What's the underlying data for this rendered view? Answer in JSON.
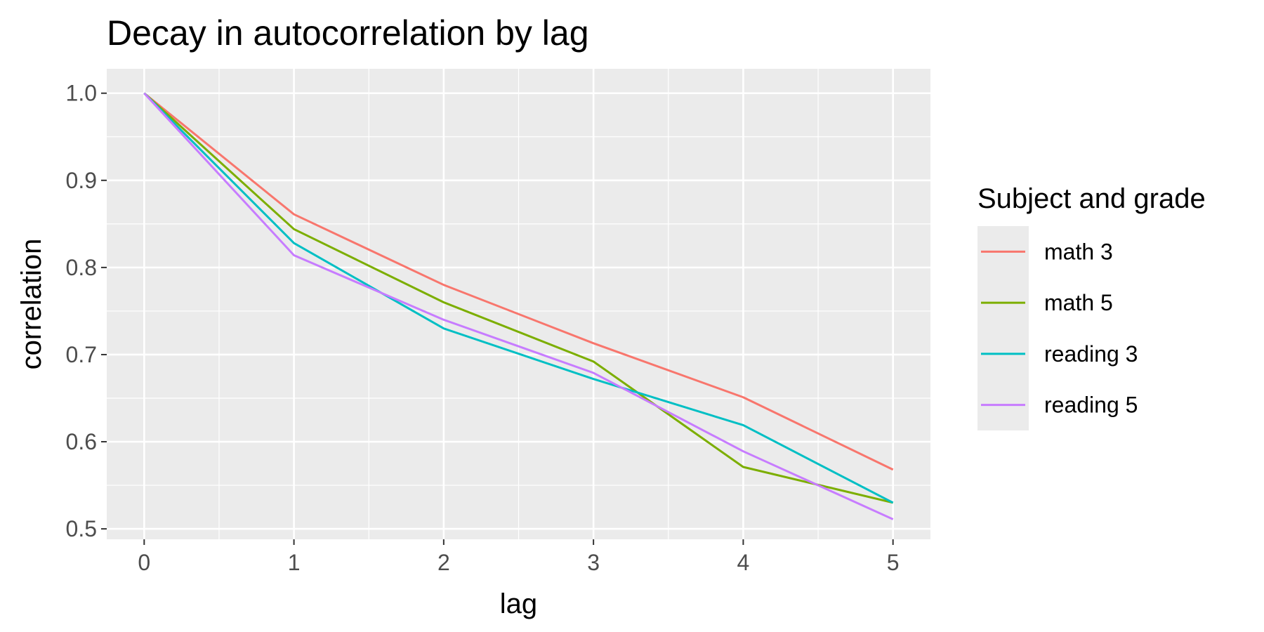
{
  "chart_data": {
    "type": "line",
    "title": "Decay in autocorrelation by lag",
    "xlabel": "lag",
    "ylabel": "correlation",
    "x": [
      0,
      1,
      2,
      3,
      4,
      5
    ],
    "xlim": [
      -0.25,
      5.25
    ],
    "ylim": [
      0.488,
      1.028
    ],
    "x_ticks": [
      0,
      1,
      2,
      3,
      4,
      5
    ],
    "x_tick_labels": [
      "0",
      "1",
      "2",
      "3",
      "4",
      "5"
    ],
    "y_ticks": [
      0.5,
      0.6,
      0.7,
      0.8,
      0.9,
      1.0
    ],
    "y_tick_labels": [
      "0.5",
      "0.6",
      "0.7",
      "0.8",
      "0.9",
      "1.0"
    ],
    "grid": true,
    "legend_title": "Subject and grade",
    "legend_position": "right",
    "series": [
      {
        "name": "math 3",
        "color": "#F8766D",
        "values": [
          1.0,
          0.861,
          0.78,
          0.713,
          0.651,
          0.568
        ]
      },
      {
        "name": "math 5",
        "color": "#7CAE00",
        "values": [
          1.0,
          0.844,
          0.76,
          0.692,
          0.571,
          0.53
        ]
      },
      {
        "name": "reading 3",
        "color": "#00BFC4",
        "values": [
          1.0,
          0.828,
          0.73,
          0.672,
          0.619,
          0.53
        ]
      },
      {
        "name": "reading 5",
        "color": "#C77CFF",
        "values": [
          1.0,
          0.814,
          0.74,
          0.679,
          0.589,
          0.511
        ]
      }
    ],
    "panel_background": "#EBEBEB",
    "grid_color": "#FFFFFF"
  }
}
